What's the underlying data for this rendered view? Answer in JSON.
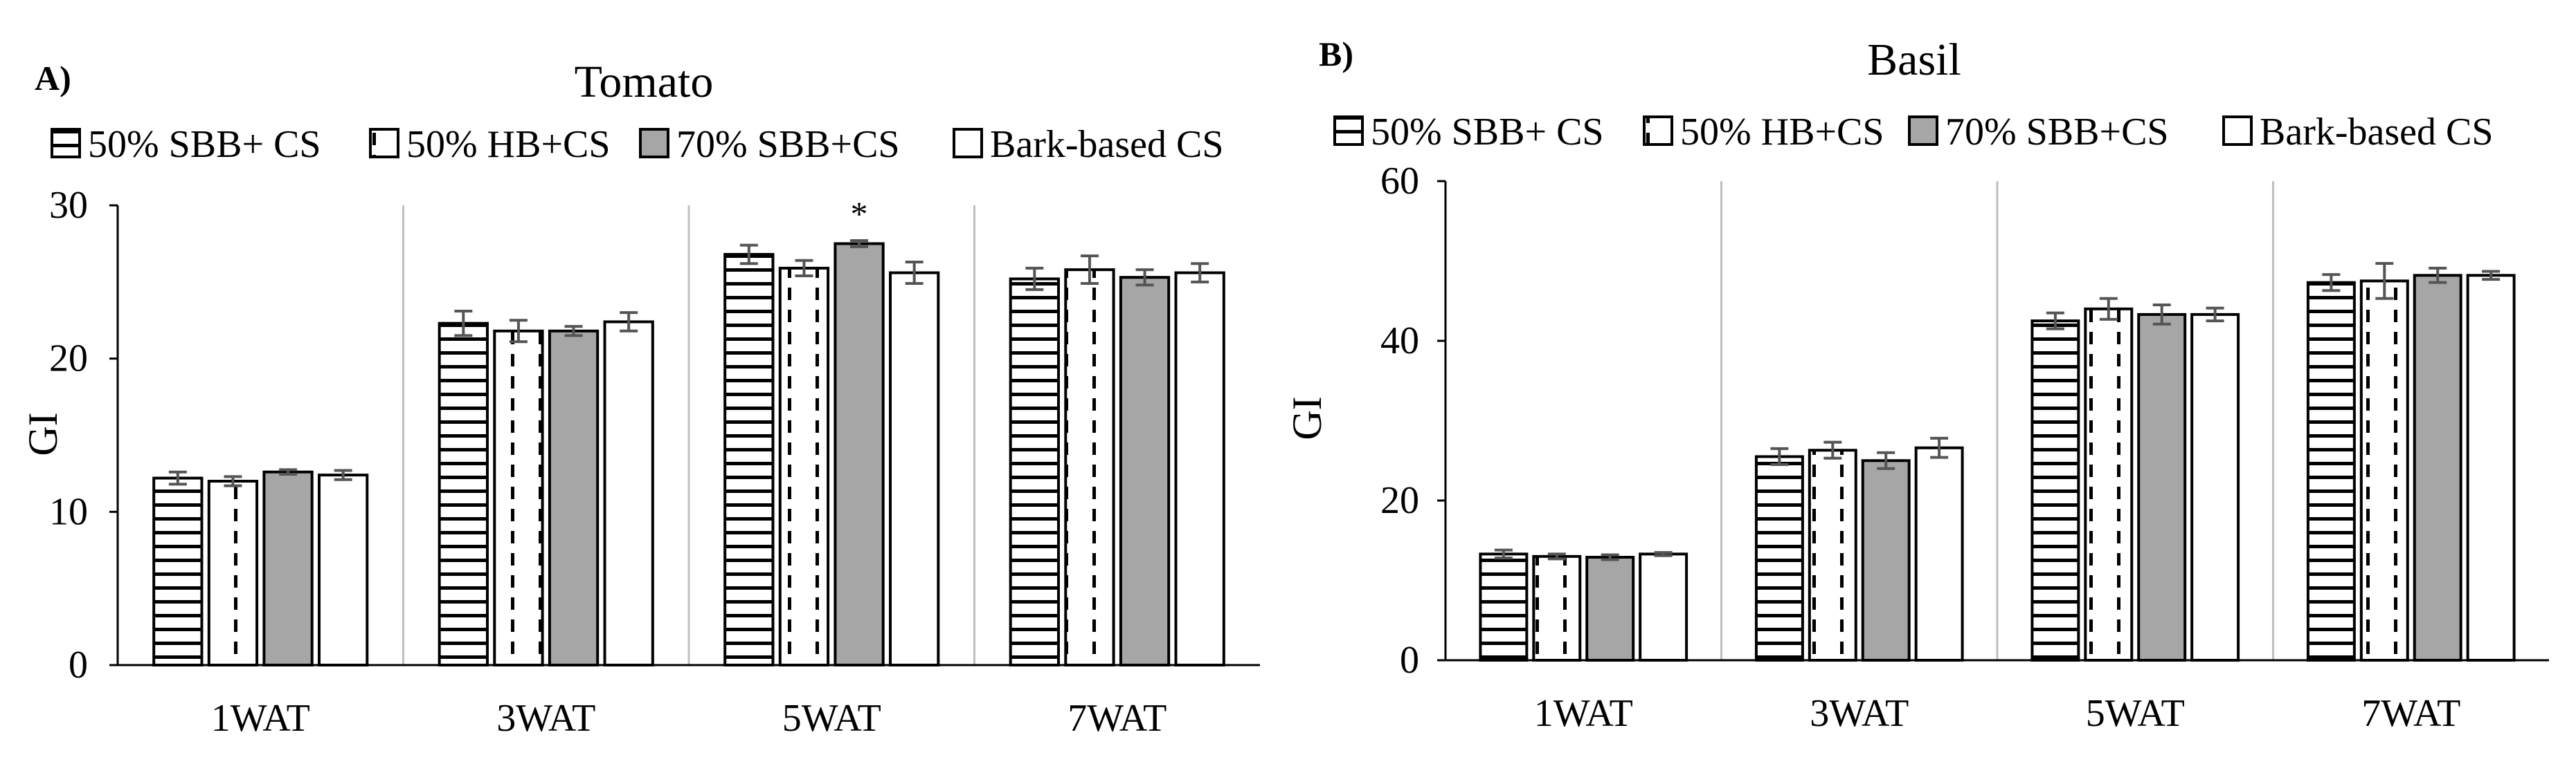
{
  "chart_data": [
    {
      "panel_label": "A)",
      "type": "bar",
      "title": "Tomato",
      "xlabel": "",
      "ylabel": "GI",
      "ylim": [
        0,
        30
      ],
      "yticks": [
        0,
        10,
        20,
        30
      ],
      "grid": "vertical separators between categories",
      "legend_position": "top",
      "categories": [
        "1WAT",
        "3WAT",
        "5WAT",
        "7WAT"
      ],
      "series": [
        {
          "name": "50% SBB+ CS",
          "pattern": "horizontal-lines",
          "values": [
            12.2,
            22.3,
            26.8,
            25.2
          ],
          "errors": [
            0.4,
            0.8,
            0.6,
            0.7
          ]
        },
        {
          "name": "50% HB+CS",
          "pattern": "dashed-vertical",
          "values": [
            12.0,
            21.8,
            25.9,
            25.8
          ],
          "errors": [
            0.3,
            0.7,
            0.5,
            0.9
          ]
        },
        {
          "name": "70% SBB+CS",
          "pattern": "solid-gray",
          "values": [
            12.6,
            21.8,
            27.5,
            25.3
          ],
          "errors": [
            0.15,
            0.3,
            0.2,
            0.5
          ]
        },
        {
          "name": "Bark-based CS",
          "pattern": "white",
          "values": [
            12.4,
            22.4,
            25.6,
            25.6
          ],
          "errors": [
            0.3,
            0.6,
            0.7,
            0.6
          ]
        }
      ],
      "annotations": [
        {
          "text": "*",
          "category": "5WAT",
          "series": "70% SBB+CS"
        }
      ]
    },
    {
      "panel_label": "B)",
      "type": "bar",
      "title": "Basil",
      "xlabel": "",
      "ylabel": "GI",
      "ylim": [
        0,
        60
      ],
      "yticks": [
        0,
        20,
        40,
        60
      ],
      "grid": "vertical separators between categories",
      "legend_position": "top",
      "categories": [
        "1WAT",
        "3WAT",
        "5WAT",
        "7WAT"
      ],
      "series": [
        {
          "name": "50% SBB+ CS",
          "pattern": "horizontal-lines",
          "values": [
            13.3,
            25.5,
            42.5,
            47.3
          ],
          "errors": [
            0.5,
            1.0,
            1.0,
            1.0
          ]
        },
        {
          "name": "50% HB+CS",
          "pattern": "dashed-vertical",
          "values": [
            13.0,
            26.3,
            44.0,
            47.5
          ],
          "errors": [
            0.3,
            1.0,
            1.3,
            2.2
          ]
        },
        {
          "name": "70% SBB+CS",
          "pattern": "solid-gray",
          "values": [
            12.9,
            25.0,
            43.3,
            48.2
          ],
          "errors": [
            0.3,
            1.0,
            1.2,
            0.9
          ]
        },
        {
          "name": "Bark-based CS",
          "pattern": "white",
          "values": [
            13.3,
            26.6,
            43.3,
            48.2
          ],
          "errors": [
            0.2,
            1.2,
            0.8,
            0.5
          ]
        }
      ],
      "annotations": []
    }
  ]
}
